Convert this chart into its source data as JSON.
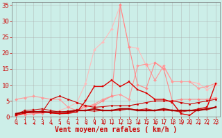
{
  "background_color": "#cceee8",
  "grid_color": "#aaaaaa",
  "xlabel": "Vent moyen/en rafales ( km/h )",
  "xlabel_color": "#cc0000",
  "xlabel_fontsize": 7,
  "xtick_color": "#cc0000",
  "ytick_color": "#cc0000",
  "ytick_fontsize": 6.5,
  "xtick_fontsize": 5.5,
  "xlim": [
    -0.5,
    23.5
  ],
  "ylim": [
    0,
    36
  ],
  "yticks": [
    0,
    5,
    10,
    15,
    20,
    25,
    30,
    35
  ],
  "xticks": [
    0,
    1,
    2,
    3,
    4,
    5,
    6,
    7,
    8,
    9,
    10,
    11,
    12,
    13,
    14,
    15,
    16,
    17,
    18,
    19,
    20,
    21,
    22,
    23
  ],
  "series": [
    {
      "x": [
        0,
        1,
        2,
        3,
        4,
        5,
        6,
        7,
        8,
        9,
        10,
        11,
        12,
        13,
        14,
        15,
        16,
        17,
        18,
        19,
        20,
        21,
        22,
        23
      ],
      "y": [
        0.5,
        0.8,
        1.0,
        1.2,
        1.5,
        2.0,
        3.0,
        4.5,
        10.5,
        21.0,
        23.5,
        27.5,
        35.0,
        22.0,
        21.5,
        16.0,
        17.0,
        15.5,
        11.0,
        11.0,
        11.0,
        10.5,
        8.5,
        10.0
      ],
      "color": "#ffbbbb",
      "lw": 0.8,
      "marker": "D",
      "ms": 2.0,
      "alpha": 1.0
    },
    {
      "x": [
        0,
        1,
        2,
        3,
        4,
        5,
        6,
        7,
        8,
        9,
        10,
        11,
        12,
        13,
        14,
        15,
        16,
        17,
        18,
        19,
        20,
        21,
        22,
        23
      ],
      "y": [
        5.5,
        6.0,
        6.5,
        6.0,
        5.5,
        5.5,
        3.0,
        2.0,
        3.0,
        4.0,
        5.5,
        6.5,
        7.0,
        5.5,
        16.0,
        16.5,
        11.5,
        16.0,
        11.0,
        11.0,
        11.0,
        9.0,
        9.5,
        10.5
      ],
      "color": "#ff9999",
      "lw": 0.8,
      "marker": "D",
      "ms": 2.0,
      "alpha": 1.0
    },
    {
      "x": [
        0,
        1,
        2,
        3,
        4,
        5,
        6,
        7,
        8,
        9,
        10,
        11,
        12,
        13,
        14,
        15,
        16,
        17,
        18,
        19,
        20,
        21,
        22,
        23
      ],
      "y": [
        0.5,
        0.8,
        1.0,
        1.2,
        1.5,
        1.5,
        1.5,
        2.0,
        3.5,
        3.5,
        5.0,
        6.5,
        35.0,
        22.0,
        10.0,
        9.0,
        17.0,
        15.0,
        5.0,
        5.5,
        5.5,
        5.5,
        5.5,
        6.0
      ],
      "color": "#ff8888",
      "lw": 0.8,
      "marker": "D",
      "ms": 2.0,
      "alpha": 1.0
    },
    {
      "x": [
        0,
        1,
        2,
        3,
        4,
        5,
        6,
        7,
        8,
        9,
        10,
        11,
        12,
        13,
        14,
        15,
        16,
        17,
        18,
        19,
        20,
        21,
        22,
        23
      ],
      "y": [
        0.5,
        1.2,
        1.5,
        1.8,
        1.2,
        1.0,
        1.1,
        1.5,
        5.0,
        9.5,
        9.5,
        11.5,
        9.5,
        11.0,
        8.5,
        7.5,
        5.5,
        5.5,
        4.5,
        1.0,
        0.5,
        2.5,
        3.0,
        10.5
      ],
      "color": "#dd0000",
      "lw": 1.0,
      "marker": "s",
      "ms": 2.0,
      "alpha": 1.0
    },
    {
      "x": [
        0,
        1,
        2,
        3,
        4,
        5,
        6,
        7,
        8,
        9,
        10,
        11,
        12,
        13,
        14,
        15,
        16,
        17,
        18,
        19,
        20,
        21,
        22,
        23
      ],
      "y": [
        1.0,
        1.5,
        1.8,
        1.5,
        5.5,
        6.5,
        5.5,
        4.5,
        3.5,
        3.0,
        3.2,
        3.5,
        3.5,
        3.5,
        4.0,
        4.5,
        5.0,
        5.0,
        5.0,
        4.5,
        4.0,
        4.5,
        5.0,
        5.5
      ],
      "color": "#cc0000",
      "lw": 0.8,
      "marker": "o",
      "ms": 1.8,
      "alpha": 1.0
    },
    {
      "x": [
        0,
        1,
        2,
        3,
        4,
        5,
        6,
        7,
        8,
        9,
        10,
        11,
        12,
        13,
        14,
        15,
        16,
        17,
        18,
        19,
        20,
        21,
        22,
        23
      ],
      "y": [
        0.8,
        2.0,
        2.2,
        2.5,
        2.0,
        1.5,
        1.8,
        2.2,
        2.0,
        1.8,
        2.0,
        2.0,
        2.0,
        2.5,
        2.2,
        2.5,
        2.0,
        2.0,
        2.0,
        1.5,
        2.0,
        2.5,
        2.2,
        3.0
      ],
      "color": "#cc0000",
      "lw": 0.8,
      "marker": "s",
      "ms": 1.8,
      "alpha": 0.85
    },
    {
      "x": [
        0,
        1,
        2,
        3,
        4,
        5,
        6,
        7,
        8,
        9,
        10,
        11,
        12,
        13,
        14,
        15,
        16,
        17,
        18,
        19,
        20,
        21,
        22,
        23
      ],
      "y": [
        1.0,
        1.5,
        1.5,
        1.5,
        1.5,
        1.5,
        1.5,
        2.0,
        2.0,
        2.5,
        2.0,
        2.0,
        2.5,
        2.5,
        2.0,
        2.0,
        2.0,
        2.5,
        2.0,
        2.0,
        2.0,
        2.0,
        2.5,
        3.0
      ],
      "color": "#aa0000",
      "lw": 1.5,
      "marker": "s",
      "ms": 2.0,
      "alpha": 1.0
    }
  ]
}
